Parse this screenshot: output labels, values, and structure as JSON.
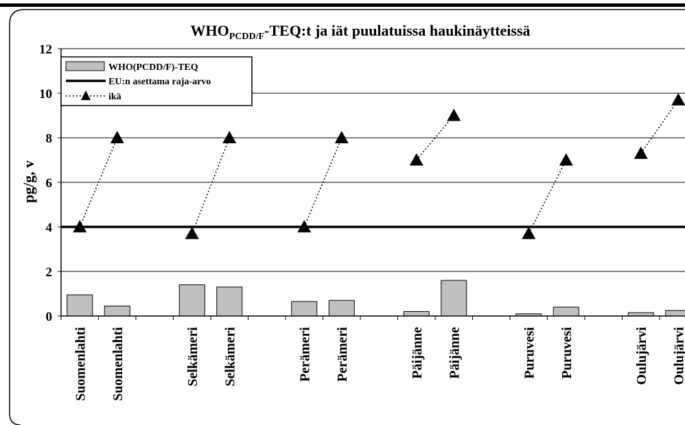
{
  "chart_data": {
    "type": "bar",
    "title": {
      "main": "WHO",
      "sub": "PCDD/F",
      "rest": "-TEQ:t ja iät puulatuissa haukinäytteissä"
    },
    "ylabel": "pg/g, v",
    "xlabel": "",
    "ylim": [
      0,
      12
    ],
    "yticks": [
      "0",
      "2",
      "4",
      "6",
      "8",
      "10",
      "12"
    ],
    "grid": true,
    "legend_position": "top-left",
    "categories": [
      "Suomenlahti",
      "Suomenlahti",
      "",
      "Selkämeri",
      "Selkämeri",
      "",
      "Perämeri",
      "Perämeri",
      "",
      "Päijänne",
      "Päijänne",
      "",
      "Puruvesi",
      "Puruvesi",
      "",
      "Oulujärvi",
      "Oulujärvi"
    ],
    "series": [
      {
        "name": "WHO(PCDD/F)-TEQ",
        "type": "bar",
        "color": "#c0c0c0",
        "values": [
          0.95,
          0.45,
          null,
          1.4,
          1.3,
          null,
          0.65,
          0.7,
          null,
          0.2,
          1.6,
          null,
          0.1,
          0.4,
          null,
          0.15,
          0.25
        ]
      },
      {
        "name": "EU:n asettama raja-arvo",
        "type": "hline",
        "color": "#000000",
        "value": 4
      },
      {
        "name": "ikä",
        "type": "line",
        "style": "dotted",
        "marker": "triangle",
        "color": "#000000",
        "values": [
          4,
          8,
          null,
          3.7,
          8,
          null,
          4,
          8,
          null,
          7,
          9,
          null,
          3.7,
          7,
          null,
          7.3,
          9.7
        ]
      }
    ]
  }
}
